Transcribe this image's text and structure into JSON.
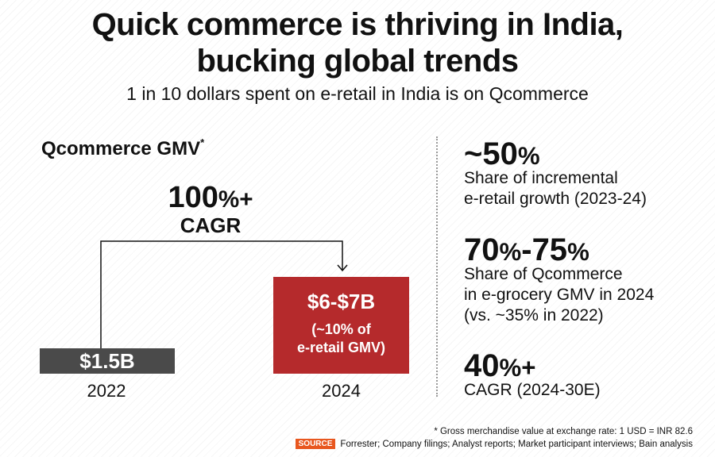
{
  "header": {
    "title_line1": "Quick commerce is thriving in India,",
    "title_line2": "bucking global trends",
    "subtitle": "1 in 10 dollars spent on e-retail in India is on Qcommerce"
  },
  "chart_data": {
    "type": "bar",
    "title": "Qcommerce GMV",
    "title_marker": "*",
    "categories": [
      "2022",
      "2024"
    ],
    "values": [
      1.5,
      6.5
    ],
    "unit": "USD billion",
    "data_labels": [
      "$1.5B",
      "$6-$7B"
    ],
    "sub_label_2024_line1": "(~10% of",
    "sub_label_2024_line2": "e-retail GMV)",
    "colors": [
      "#4a4a4a",
      "#b52a2c"
    ],
    "annotation": {
      "value_number": "100",
      "value_suffix": "%+",
      "label": "CAGR"
    }
  },
  "stats": [
    {
      "big": "~50",
      "big_suffix": "%",
      "desc_line1": "Share of incremental",
      "desc_line2": "e-retail growth (2023-24)"
    },
    {
      "big_a": "70",
      "big_a_suffix": "%",
      "big_dash": "-",
      "big_b": "75",
      "big_b_suffix": "%",
      "desc_line1": "Share of Qcommerce",
      "desc_line2": "in e-grocery GMV in 2024",
      "desc_line3": "(vs. ~35% in 2022)"
    },
    {
      "big": "40",
      "big_suffix": "%+",
      "desc_line1": "CAGR (2024-30E)"
    }
  ],
  "footer": {
    "footnote": "* Gross merchandise value at exchange rate: 1 USD = INR 82.6",
    "source_tag": "SOURCE",
    "source_text": "Forrester; Company filings; Analyst reports; Market participant interviews; Bain analysis"
  }
}
